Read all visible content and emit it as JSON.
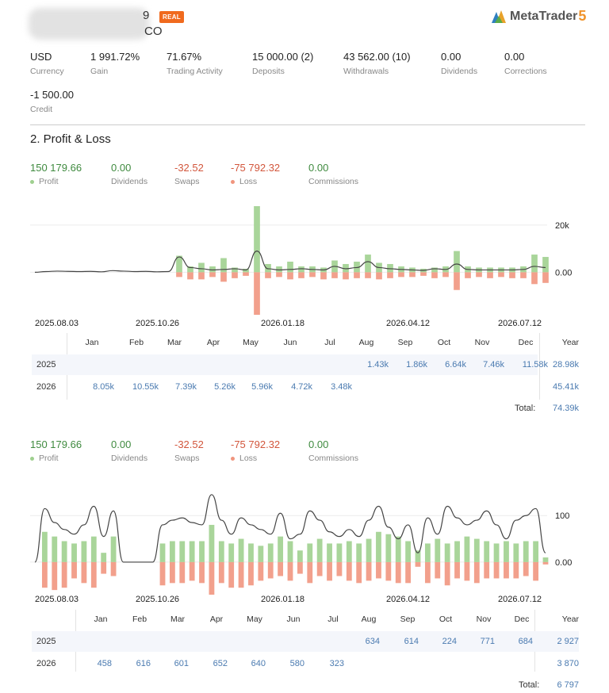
{
  "header": {
    "account_tail_1": "9",
    "account_tail_2": "CO",
    "badge": "REAL",
    "logo_text": "MetaTrader",
    "logo_num": "5"
  },
  "stats": [
    {
      "value": "USD",
      "label": "Currency"
    },
    {
      "value": "1 991.72%",
      "label": "Gain"
    },
    {
      "value": "71.67%",
      "label": "Trading Activity"
    },
    {
      "value": "15 000.00 (2)",
      "label": "Deposits"
    },
    {
      "value": "43 562.00 (10)",
      "label": "Withdrawals"
    },
    {
      "value": "0.00",
      "label": "Dividends"
    },
    {
      "value": "0.00",
      "label": "Corrections"
    },
    {
      "value": "-1 500.00",
      "label": "Credit"
    }
  ],
  "section_title": "2. Profit & Loss",
  "pl_summary": [
    {
      "value": "150 179.66",
      "label": "Profit",
      "color": "green",
      "dot": "g"
    },
    {
      "value": "0.00",
      "label": "Dividends",
      "color": "green",
      "dot": ""
    },
    {
      "value": "-32.52",
      "label": "Swaps",
      "color": "red",
      "dot": ""
    },
    {
      "value": "-75 792.32",
      "label": "Loss",
      "color": "red",
      "dot": "r"
    },
    {
      "value": "0.00",
      "label": "Commissions",
      "color": "green",
      "dot": ""
    }
  ],
  "colors": {
    "profit_bar": "#a9d59a",
    "loss_bar": "#f2a08c",
    "line": "#444444",
    "link": "#4a7ab0",
    "badge": "#f06a1e"
  },
  "chart_data": [
    {
      "type": "bar",
      "x_tick_labels": [
        "2025.08.03",
        "2025.10.26",
        "2026.01.18",
        "2026.04.12",
        "2026.07.12"
      ],
      "y_tick_labels": [
        "20k",
        "0.00"
      ],
      "y_ticks": [
        20000,
        0
      ],
      "ylim": [
        -19000,
        28000
      ],
      "series": [
        {
          "values": [
            0,
            0,
            0,
            0,
            0,
            0,
            0,
            0,
            0,
            0,
            0,
            0,
            0,
            7000,
            2500,
            4000,
            2500,
            6000,
            2000,
            1500,
            28000,
            3500,
            2500,
            4500,
            2500,
            2500,
            2000,
            5000,
            3500,
            4500,
            7500,
            4000,
            3500,
            2500,
            2000,
            1500,
            2000,
            2500,
            9000,
            2500,
            2000,
            2000,
            2000,
            2000,
            2500,
            7500,
            6500
          ]
        },
        {
          "values": [
            0,
            0,
            0,
            0,
            0,
            0,
            0,
            0,
            0,
            0,
            0,
            0,
            0,
            -2000,
            -3000,
            -3000,
            -2000,
            -4000,
            -2500,
            -1500,
            -18000,
            -2500,
            -2000,
            -3000,
            -2500,
            -2000,
            -3000,
            -2500,
            -3000,
            -2500,
            -2500,
            -3000,
            -2500,
            -2000,
            -2000,
            -1500,
            -2500,
            -2000,
            -7500,
            -2500,
            -2000,
            -2500,
            -2000,
            -2500,
            -2500,
            -5000,
            -4500
          ]
        },
        {
          "values": [
            0,
            300,
            500,
            400,
            300,
            400,
            200,
            700,
            500,
            300,
            400,
            200,
            300,
            6500,
            2000,
            1500,
            1000,
            1200,
            1500,
            1000,
            9000,
            1500,
            1000,
            1200,
            1500,
            1200,
            1000,
            2500,
            1500,
            2000,
            4500,
            2000,
            1500,
            1200,
            1000,
            800,
            1500,
            1200,
            3500,
            1200,
            1000,
            1000,
            1000,
            1000,
            1200,
            2500,
            2000
          ]
        }
      ],
      "table": {
        "months": [
          "Jan",
          "Feb",
          "Mar",
          "Apr",
          "May",
          "Jun",
          "Jul",
          "Aug",
          "Sep",
          "Oct",
          "Nov",
          "Dec"
        ],
        "year_header": "Year",
        "rows": [
          {
            "year": "2025",
            "cells": [
              "",
              "",
              "",
              "",
              "",
              "",
              "",
              "1.43k",
              "1.86k",
              "6.64k",
              "7.46k",
              "11.58k"
            ],
            "total": "28.98k"
          },
          {
            "year": "2026",
            "cells": [
              "8.05k",
              "10.55k",
              "7.39k",
              "5.26k",
              "5.96k",
              "4.72k",
              "3.48k",
              "",
              "",
              "",
              "",
              ""
            ],
            "total": "45.41k"
          }
        ],
        "total_label": "Total:",
        "total_value": "74.39k"
      }
    },
    {
      "type": "bar",
      "x_tick_labels": [
        "2025.08.03",
        "2025.10.26",
        "2026.01.18",
        "2026.04.12",
        "2026.07.12"
      ],
      "y_tick_labels": [
        "100",
        "0.00"
      ],
      "y_ticks": [
        100,
        0
      ],
      "ylim": [
        -70,
        160
      ],
      "series": [
        {
          "values": [
            0,
            65,
            55,
            45,
            40,
            45,
            55,
            20,
            55,
            0,
            0,
            0,
            0,
            40,
            45,
            45,
            45,
            45,
            80,
            45,
            40,
            50,
            40,
            35,
            40,
            55,
            45,
            25,
            40,
            50,
            40,
            40,
            45,
            40,
            50,
            65,
            60,
            55,
            45,
            25,
            40,
            50,
            40,
            45,
            55,
            50,
            45,
            40,
            45,
            40,
            45,
            45,
            10
          ]
        },
        {
          "values": [
            0,
            -55,
            -60,
            -55,
            -35,
            -45,
            -55,
            -25,
            -30,
            0,
            0,
            0,
            0,
            -50,
            -45,
            -45,
            -40,
            -45,
            -70,
            -45,
            -55,
            -55,
            -50,
            -40,
            -35,
            -30,
            -40,
            -25,
            -45,
            -30,
            -40,
            -30,
            -40,
            -45,
            -40,
            -35,
            -40,
            -45,
            -45,
            -10,
            -45,
            -35,
            -50,
            -35,
            -40,
            -45,
            -35,
            -35,
            -35,
            -35,
            -30,
            -40,
            -5
          ]
        },
        {
          "values": [
            0,
            115,
            85,
            70,
            60,
            80,
            120,
            55,
            110,
            0,
            0,
            0,
            0,
            80,
            90,
            95,
            85,
            80,
            145,
            90,
            60,
            95,
            80,
            70,
            60,
            105,
            50,
            60,
            110,
            90,
            65,
            55,
            70,
            55,
            90,
            120,
            75,
            50,
            80,
            20,
            95,
            60,
            120,
            95,
            80,
            90,
            110,
            80,
            50,
            90,
            100,
            115,
            20
          ]
        }
      ],
      "table": {
        "months": [
          "Jan",
          "Feb",
          "Mar",
          "Apr",
          "May",
          "Jun",
          "Jul",
          "Aug",
          "Sep",
          "Oct",
          "Nov",
          "Dec"
        ],
        "year_header": "Year",
        "rows": [
          {
            "year": "2025",
            "cells": [
              "",
              "",
              "",
              "",
              "",
              "",
              "",
              "634",
              "614",
              "224",
              "771",
              "684"
            ],
            "total": "2 927"
          },
          {
            "year": "2026",
            "cells": [
              "458",
              "616",
              "601",
              "652",
              "640",
              "580",
              "323",
              "",
              "",
              "",
              "",
              ""
            ],
            "total": "3 870"
          }
        ],
        "total_label": "Total:",
        "total_value": "6 797"
      }
    }
  ]
}
